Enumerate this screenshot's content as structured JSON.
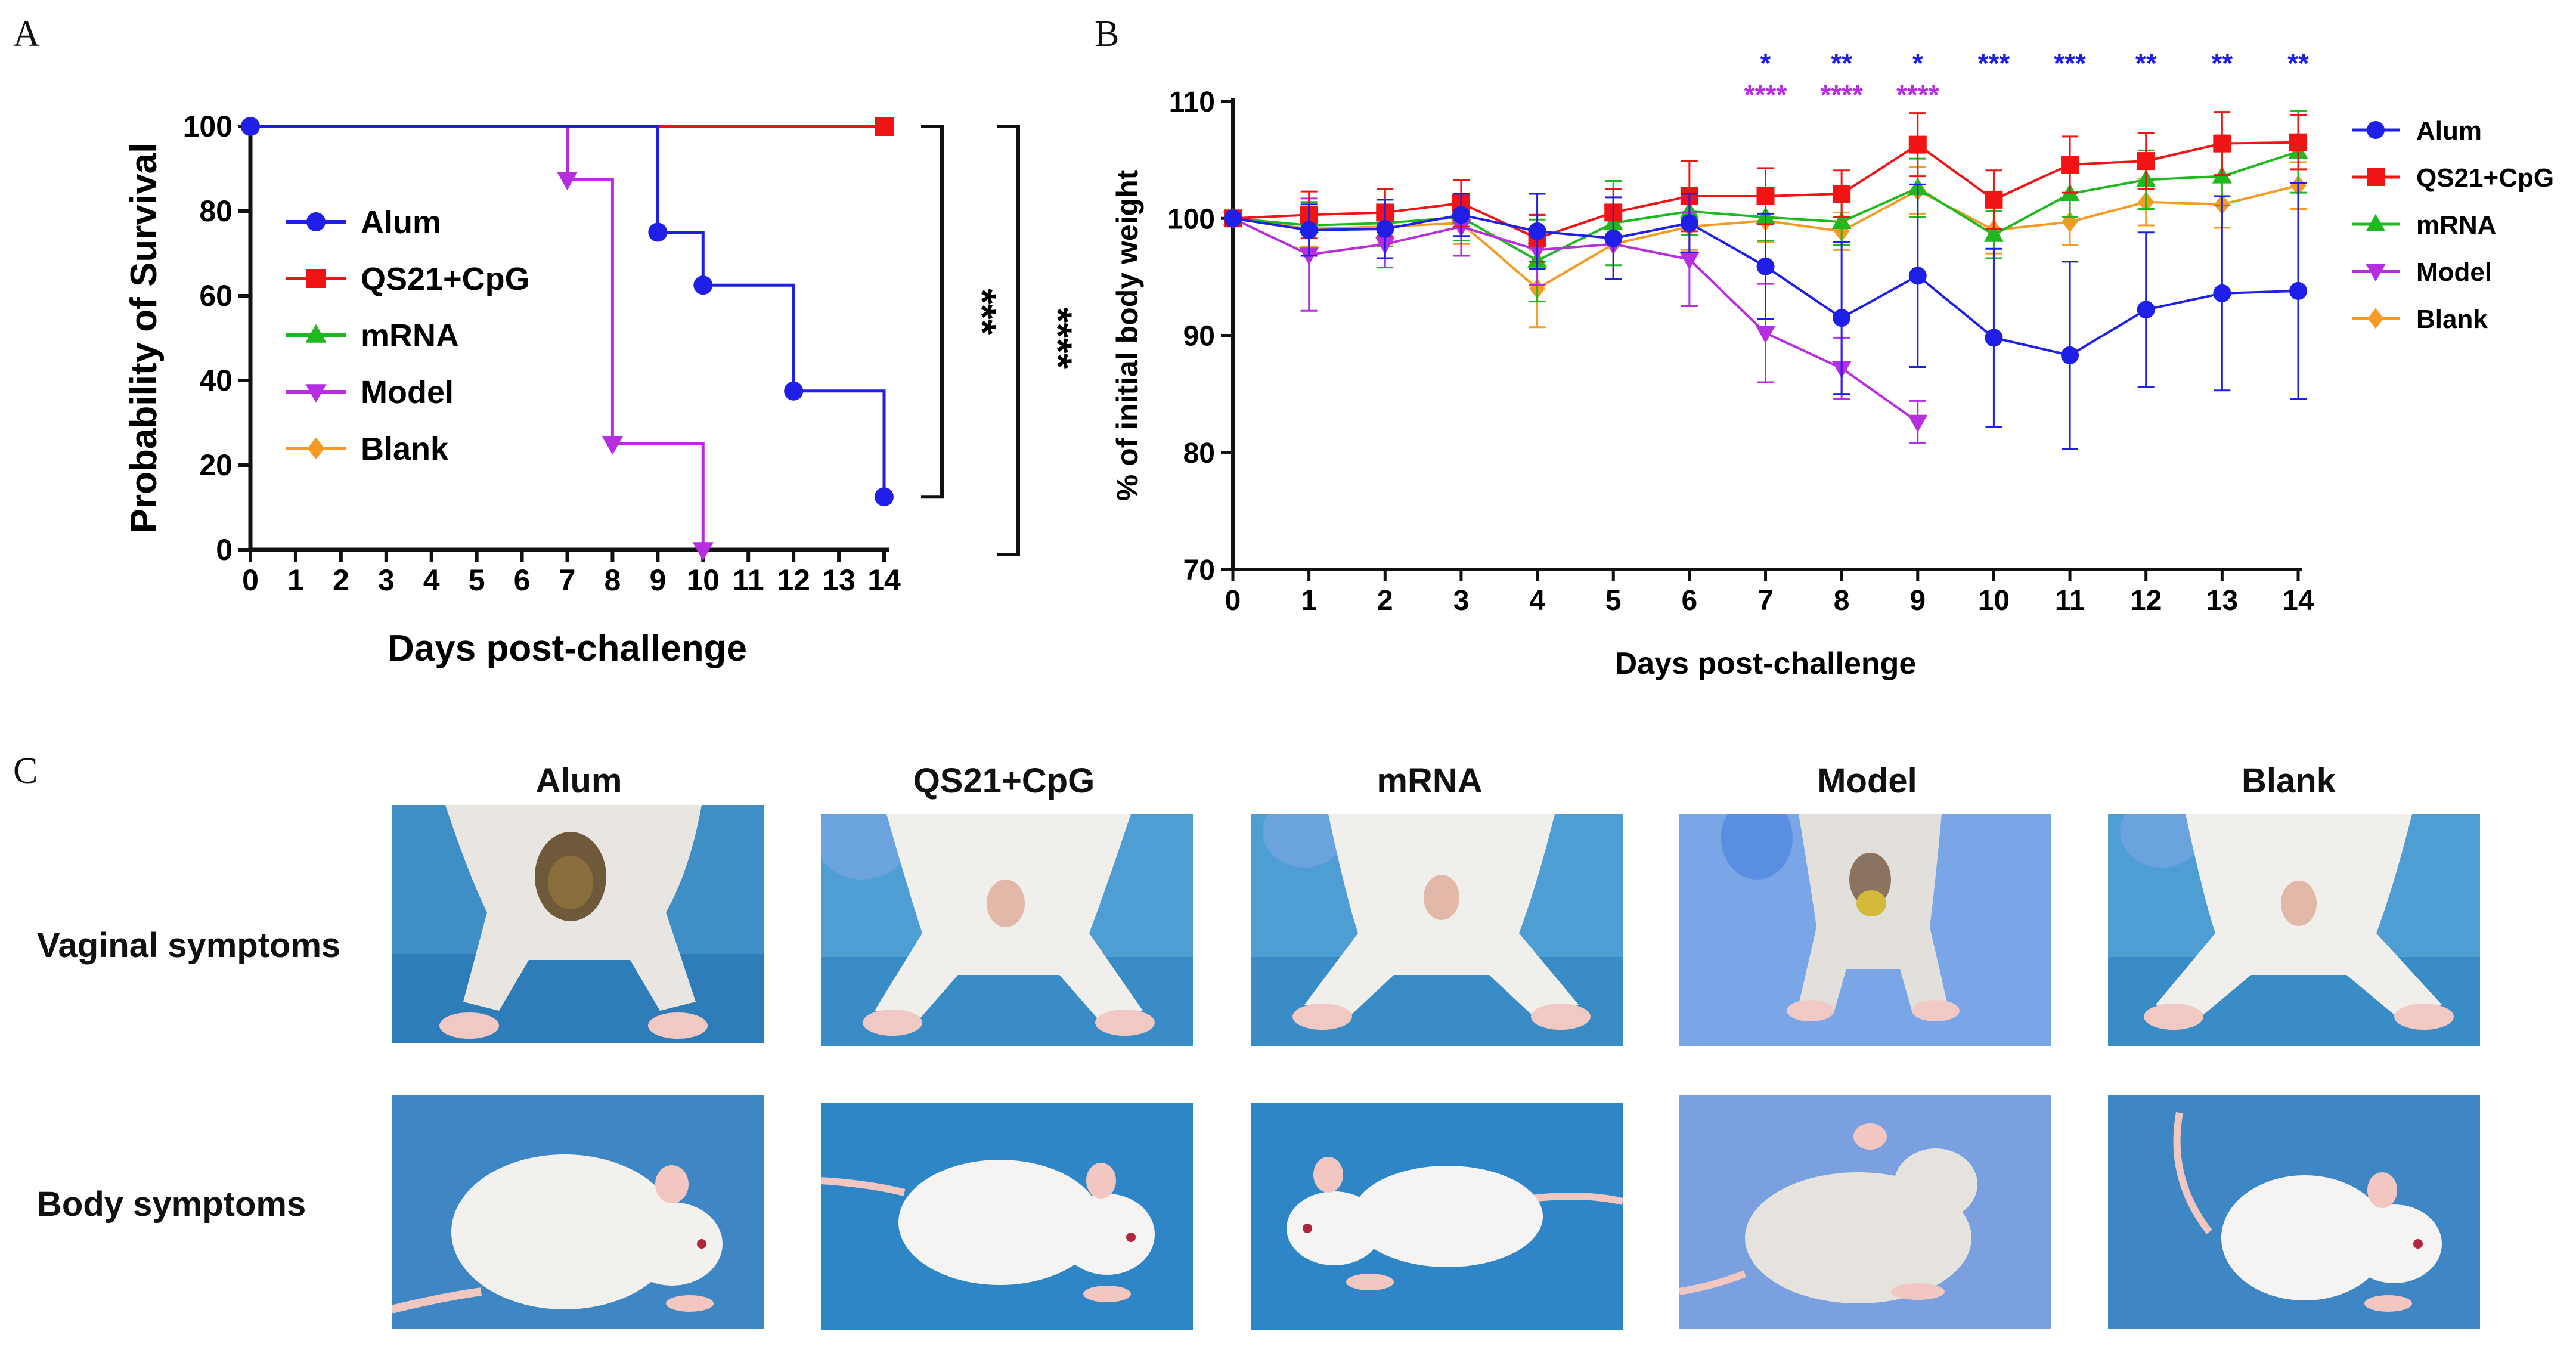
{
  "panels": {
    "A": "A",
    "B": "B",
    "C": "C"
  },
  "colors": {
    "Alum": "#1f1fe8",
    "QS21+CpG": "#f01414",
    "mRNA": "#1fb81f",
    "Model": "#b62ee0",
    "Blank": "#f59a22"
  },
  "chart_data": [
    {
      "type": "line",
      "subtype": "kaplan-meier step",
      "title": "",
      "xlabel": "Days post-challenge",
      "ylabel": "Probability of Survival",
      "xlim": [
        0,
        14
      ],
      "ylim": [
        0,
        100
      ],
      "xticks": [
        "0",
        "1",
        "2",
        "3",
        "4",
        "5",
        "6",
        "7",
        "8",
        "9",
        "10",
        "11",
        "12",
        "13",
        "14"
      ],
      "yticks": [
        "0",
        "20",
        "40",
        "60",
        "80",
        "100"
      ],
      "legend_position": "inside-left",
      "legend": [
        "Alum",
        "QS21+CpG",
        "mRNA",
        "Model",
        "Blank"
      ],
      "series": [
        {
          "name": "Alum",
          "color": "#1f1fe8",
          "marker": "circle",
          "steps": [
            [
              0,
              100
            ],
            [
              9,
              75
            ],
            [
              10,
              62.5
            ],
            [
              12,
              37.5
            ],
            [
              14,
              12.5
            ]
          ],
          "end": 14
        },
        {
          "name": "QS21+CpG",
          "color": "#f01414",
          "marker": "square",
          "steps": [
            [
              0,
              100
            ],
            [
              14,
              100
            ]
          ],
          "end": 14
        },
        {
          "name": "mRNA",
          "color": "#1fb81f",
          "marker": "triangle-up",
          "steps": [
            [
              0,
              100
            ]
          ],
          "end": 14
        },
        {
          "name": "Model",
          "color": "#b62ee0",
          "marker": "triangle-down",
          "steps": [
            [
              0,
              100
            ],
            [
              7,
              87.5
            ],
            [
              8,
              25
            ],
            [
              10,
              0
            ]
          ],
          "end": 10
        },
        {
          "name": "Blank",
          "color": "#f59a22",
          "marker": "diamond",
          "steps": [
            [
              0,
              100
            ]
          ],
          "end": 14
        }
      ],
      "significance": [
        {
          "label": "***",
          "from": 100,
          "to": 12.5
        },
        {
          "label": "****",
          "from": 100,
          "to": 0
        }
      ]
    },
    {
      "type": "line",
      "title": "",
      "xlabel": "Days post-challenge",
      "ylabel": "% of initial body weight",
      "xlim": [
        0,
        14
      ],
      "ylim": [
        70,
        110
      ],
      "xticks": [
        "0",
        "1",
        "2",
        "3",
        "4",
        "5",
        "6",
        "7",
        "8",
        "9",
        "10",
        "11",
        "12",
        "13",
        "14"
      ],
      "yticks": [
        "70",
        "80",
        "90",
        "100",
        "110"
      ],
      "legend_position": "right",
      "legend": [
        "Alum",
        "QS21+CpG",
        "mRNA",
        "Model",
        "Blank"
      ],
      "series": [
        {
          "name": "Alum",
          "color": "#1f1fe8",
          "marker": "circle",
          "x": [
            0,
            1,
            2,
            3,
            4,
            5,
            6,
            7,
            8,
            9,
            10,
            11,
            12,
            13,
            14
          ],
          "values": [
            100,
            99,
            99.1,
            100.3,
            98.9,
            98.3,
            99.6,
            95.9,
            91.5,
            95.1,
            89.8,
            88.3,
            92.2,
            93.6,
            93.8
          ],
          "errors": [
            0,
            2.2,
            2.5,
            1.8,
            3.2,
            3.5,
            2.5,
            4.5,
            6.5,
            7.8,
            7.6,
            8,
            6.6,
            8.3,
            9.2
          ]
        },
        {
          "name": "QS21+CpG",
          "color": "#f01414",
          "marker": "square",
          "x": [
            0,
            1,
            2,
            3,
            4,
            5,
            6,
            7,
            8,
            9,
            10,
            11,
            12,
            13,
            14
          ],
          "values": [
            100,
            100.3,
            100.5,
            101.3,
            98.3,
            100.5,
            101.9,
            101.9,
            102.1,
            106.3,
            101.6,
            104.6,
            104.9,
            106.4,
            106.5
          ],
          "errors": [
            0,
            2,
            2,
            2,
            2,
            2,
            3,
            2.4,
            2,
            2.7,
            2.5,
            2.4,
            2.4,
            2.7,
            2.3
          ]
        },
        {
          "name": "mRNA",
          "color": "#1fb81f",
          "marker": "triangle-up",
          "x": [
            0,
            1,
            2,
            3,
            4,
            5,
            6,
            7,
            8,
            9,
            10,
            11,
            12,
            13,
            14
          ],
          "values": [
            100,
            99.4,
            99.6,
            100.1,
            96.4,
            99.6,
            100.6,
            100.1,
            99.7,
            102.6,
            98.6,
            102.1,
            103.3,
            103.6,
            105.7
          ],
          "errors": [
            0,
            2,
            2,
            2,
            3.5,
            3.6,
            2,
            2,
            2,
            2.5,
            2,
            2,
            2.5,
            2.5,
            3.5
          ]
        },
        {
          "name": "Model",
          "color": "#b62ee0",
          "marker": "triangle-down",
          "x": [
            0,
            1,
            2,
            3,
            4,
            5,
            6,
            7,
            8,
            9
          ],
          "values": [
            100,
            96.9,
            97.8,
            99.3,
            97.3,
            97.8,
            96.5,
            90.2,
            87.2,
            82.6
          ],
          "errors": [
            0,
            4.8,
            2,
            2.5,
            3,
            3,
            4,
            4.2,
            2.6,
            1.8
          ]
        },
        {
          "name": "Blank",
          "color": "#f59a22",
          "marker": "diamond",
          "x": [
            0,
            1,
            2,
            3,
            4,
            5,
            6,
            7,
            8,
            9,
            10,
            11,
            12,
            13,
            14
          ],
          "values": [
            100,
            99.1,
            99.3,
            99.6,
            94,
            97.8,
            99.3,
            99.8,
            98.9,
            102.4,
            99,
            99.7,
            101.4,
            101.2,
            102.8
          ],
          "errors": [
            0,
            1.5,
            1.5,
            1.8,
            3.3,
            3,
            2,
            1.8,
            1.6,
            2,
            2,
            2,
            2,
            2,
            2
          ]
        }
      ],
      "significance_rows": [
        {
          "series": "Alum",
          "color": "#1f1fe8",
          "marks": [
            {
              "day": 7,
              "label": "*"
            },
            {
              "day": 8,
              "label": "**"
            },
            {
              "day": 9,
              "label": "*"
            },
            {
              "day": 10,
              "label": "***"
            },
            {
              "day": 11,
              "label": "***"
            },
            {
              "day": 12,
              "label": "**"
            },
            {
              "day": 13,
              "label": "**"
            },
            {
              "day": 14,
              "label": "**"
            }
          ]
        },
        {
          "series": "Model",
          "color": "#b62ee0",
          "marks": [
            {
              "day": 7,
              "label": "****"
            },
            {
              "day": 8,
              "label": "****"
            },
            {
              "day": 9,
              "label": "****"
            }
          ]
        }
      ]
    }
  ],
  "panel_c": {
    "columns": [
      "Alum",
      "QS21+CpG",
      "mRNA",
      "Model",
      "Blank"
    ],
    "rows": [
      "Vaginal symptoms",
      "Body symptoms"
    ]
  }
}
